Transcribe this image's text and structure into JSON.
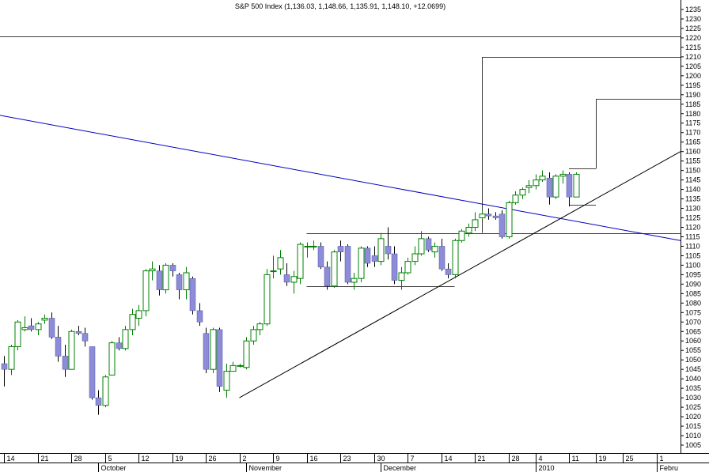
{
  "chart_data": {
    "type": "candlestick",
    "title": "S&P 500 Index (1,136.03, 1,148.66, 1,135.91, 1,148.10, +12.0699)",
    "ylim": [
      1001,
      1240
    ],
    "y_ticks": [
      1005,
      1010,
      1015,
      1020,
      1025,
      1030,
      1035,
      1040,
      1045,
      1050,
      1055,
      1060,
      1065,
      1070,
      1075,
      1080,
      1085,
      1090,
      1095,
      1100,
      1105,
      1110,
      1115,
      1120,
      1125,
      1130,
      1135,
      1140,
      1145,
      1150,
      1155,
      1160,
      1165,
      1170,
      1175,
      1180,
      1185,
      1190,
      1195,
      1200,
      1205,
      1210,
      1215,
      1220,
      1225,
      1230,
      1235
    ],
    "x_ticks": [
      {
        "label": "14",
        "bar": 0
      },
      {
        "label": "21",
        "bar": 5
      },
      {
        "label": "28",
        "bar": 10
      },
      {
        "label": "5",
        "bar": 15
      },
      {
        "label": "12",
        "bar": 20
      },
      {
        "label": "19",
        "bar": 25
      },
      {
        "label": "26",
        "bar": 30
      },
      {
        "label": "2",
        "bar": 35
      },
      {
        "label": "9",
        "bar": 40
      },
      {
        "label": "16",
        "bar": 45
      },
      {
        "label": "23",
        "bar": 50
      },
      {
        "label": "30",
        "bar": 55
      },
      {
        "label": "7",
        "bar": 60
      },
      {
        "label": "14",
        "bar": 65
      },
      {
        "label": "21",
        "bar": 70
      },
      {
        "label": "28",
        "bar": 75
      },
      {
        "label": "4",
        "bar": 79
      },
      {
        "label": "11",
        "bar": 84
      },
      {
        "label": "19",
        "bar": 88
      },
      {
        "label": "25",
        "bar": 92
      },
      {
        "label": "1",
        "bar": 97
      }
    ],
    "month_labels": [
      {
        "label": "October",
        "bar": 14
      },
      {
        "label": "November",
        "bar": 36
      },
      {
        "label": "December",
        "bar": 56
      },
      {
        "label": "2010",
        "bar": 79
      },
      {
        "label": "Febru",
        "bar": 97
      }
    ],
    "candles": [
      [
        1048,
        1052,
        1036,
        1045
      ],
      [
        1045,
        1058,
        1042,
        1057
      ],
      [
        1057,
        1071,
        1055,
        1070
      ],
      [
        1066,
        1073,
        1065,
        1067
      ],
      [
        1068,
        1072,
        1065,
        1066
      ],
      [
        1066,
        1070,
        1063,
        1069
      ],
      [
        1071,
        1074,
        1069,
        1072
      ],
      [
        1072,
        1075,
        1061,
        1062
      ],
      [
        1062,
        1068,
        1049,
        1052
      ],
      [
        1052,
        1058,
        1041,
        1045
      ],
      [
        1045,
        1066,
        1045,
        1065
      ],
      [
        1065,
        1068,
        1063,
        1064
      ],
      [
        1064,
        1067,
        1057,
        1060
      ],
      [
        1057,
        1057,
        1029,
        1030
      ],
      [
        1030,
        1034,
        1021,
        1026
      ],
      [
        1026,
        1042,
        1025,
        1041
      ],
      [
        1042,
        1060,
        1042,
        1059
      ],
      [
        1059,
        1062,
        1055,
        1056
      ],
      [
        1056,
        1068,
        1055,
        1066
      ],
      [
        1066,
        1077,
        1063,
        1074
      ],
      [
        1072,
        1079,
        1068,
        1076
      ],
      [
        1076,
        1098,
        1073,
        1097
      ],
      [
        1097,
        1102,
        1092,
        1098
      ],
      [
        1097,
        1100,
        1084,
        1087
      ],
      [
        1087,
        1101,
        1085,
        1100
      ],
      [
        1100,
        1101,
        1094,
        1097
      ],
      [
        1095,
        1096,
        1082,
        1087
      ],
      [
        1087,
        1099,
        1082,
        1096
      ],
      [
        1093,
        1094,
        1074,
        1076
      ],
      [
        1076,
        1080,
        1068,
        1070
      ],
      [
        1064,
        1067,
        1043,
        1045
      ],
      [
        1045,
        1067,
        1043,
        1066
      ],
      [
        1066,
        1067,
        1033,
        1036
      ],
      [
        1034,
        1048,
        1030,
        1044
      ],
      [
        1044,
        1049,
        1044,
        1047
      ],
      [
        1047,
        1048,
        1046,
        1047
      ],
      [
        1046,
        1062,
        1045,
        1060
      ],
      [
        1060,
        1068,
        1058,
        1066
      ],
      [
        1066,
        1070,
        1063,
        1069
      ],
      [
        1069,
        1098,
        1068,
        1095
      ],
      [
        1097,
        1105,
        1093,
        1097
      ],
      [
        1098,
        1108,
        1095,
        1104
      ],
      [
        1095,
        1101,
        1089,
        1091
      ],
      [
        1091,
        1097,
        1085,
        1094
      ],
      [
        1093,
        1112,
        1090,
        1111
      ],
      [
        1110,
        1112,
        1104,
        1110
      ],
      [
        1110,
        1113,
        1108,
        1110
      ],
      [
        1110,
        1112,
        1098,
        1099
      ],
      [
        1099,
        1102,
        1087,
        1089
      ],
      [
        1089,
        1108,
        1088,
        1107
      ],
      [
        1110,
        1113,
        1102,
        1107
      ],
      [
        1110,
        1111,
        1090,
        1091
      ],
      [
        1091,
        1096,
        1087,
        1093
      ],
      [
        1093,
        1110,
        1091,
        1109
      ],
      [
        1109,
        1110,
        1099,
        1101
      ],
      [
        1105,
        1110,
        1099,
        1102
      ],
      [
        1102,
        1117,
        1100,
        1114
      ],
      [
        1110,
        1120,
        1103,
        1106
      ],
      [
        1106,
        1110,
        1090,
        1092
      ],
      [
        1092,
        1099,
        1087,
        1096
      ],
      [
        1096,
        1104,
        1095,
        1102
      ],
      [
        1102,
        1110,
        1100,
        1106
      ],
      [
        1106,
        1118,
        1105,
        1114
      ],
      [
        1114,
        1115,
        1107,
        1108
      ],
      [
        1107,
        1112,
        1104,
        1110
      ],
      [
        1110,
        1114,
        1097,
        1098
      ],
      [
        1098,
        1101,
        1093,
        1095
      ],
      [
        1095,
        1114,
        1093,
        1113
      ],
      [
        1113,
        1119,
        1112,
        1118
      ],
      [
        1117,
        1122,
        1115,
        1120
      ],
      [
        1120,
        1128,
        1118,
        1124
      ],
      [
        1125,
        1129,
        1124,
        1127
      ],
      [
        1127,
        1130,
        1124,
        1126
      ],
      [
        1126,
        1128,
        1124,
        1125
      ],
      [
        1127,
        1129,
        1114,
        1115
      ],
      [
        1115,
        1134,
        1114,
        1133
      ],
      [
        1133,
        1139,
        1132,
        1137
      ],
      [
        1137,
        1141,
        1135,
        1140
      ],
      [
        1141,
        1145,
        1138,
        1142
      ],
      [
        1142,
        1148,
        1140,
        1145
      ],
      [
        1145,
        1150,
        1144,
        1147
      ],
      [
        1146,
        1149,
        1132,
        1136
      ],
      [
        1136,
        1148,
        1135,
        1147
      ],
      [
        1147,
        1150,
        1143,
        1148
      ],
      [
        1148,
        1149,
        1131,
        1136
      ],
      [
        1136,
        1149,
        1136,
        1148
      ]
    ],
    "horizontal_lines": [
      {
        "name": "resistance-1221",
        "y": 1221,
        "x_start": -5,
        "x_end": 104
      },
      {
        "name": "channel-top",
        "y": 1117,
        "x_start": 45,
        "x_end": 103
      },
      {
        "name": "channel-bottom",
        "y": 1089,
        "x_start": 45,
        "x_end": 67
      },
      {
        "name": "flag-top",
        "y": 1151,
        "x_start": 84,
        "x_end": 88
      },
      {
        "name": "flag-bottom",
        "y": 1132,
        "x_start": 84,
        "x_end": 88
      }
    ],
    "target_boxes": [
      {
        "name": "target-1210",
        "bar": 71,
        "y_low": 1117,
        "y_high": 1210
      },
      {
        "name": "target-1188",
        "bar": 88,
        "y_low": 1151,
        "y_high": 1188
      }
    ],
    "trendlines": [
      {
        "name": "downtrend-line",
        "color": "#0000c0",
        "x1": -5,
        "y1": 1182,
        "x2": 103.5,
        "y2": 1113
      },
      {
        "name": "uptrend-line",
        "color": "#000000",
        "x1": 35,
        "y1": 1030,
        "x2": 103.5,
        "y2": 1160
      }
    ],
    "colors": {
      "up": "#008000",
      "down": "#8c8cd8",
      "down_stroke": "#5050a0",
      "axis": "#000000",
      "grid": "#999999"
    }
  }
}
